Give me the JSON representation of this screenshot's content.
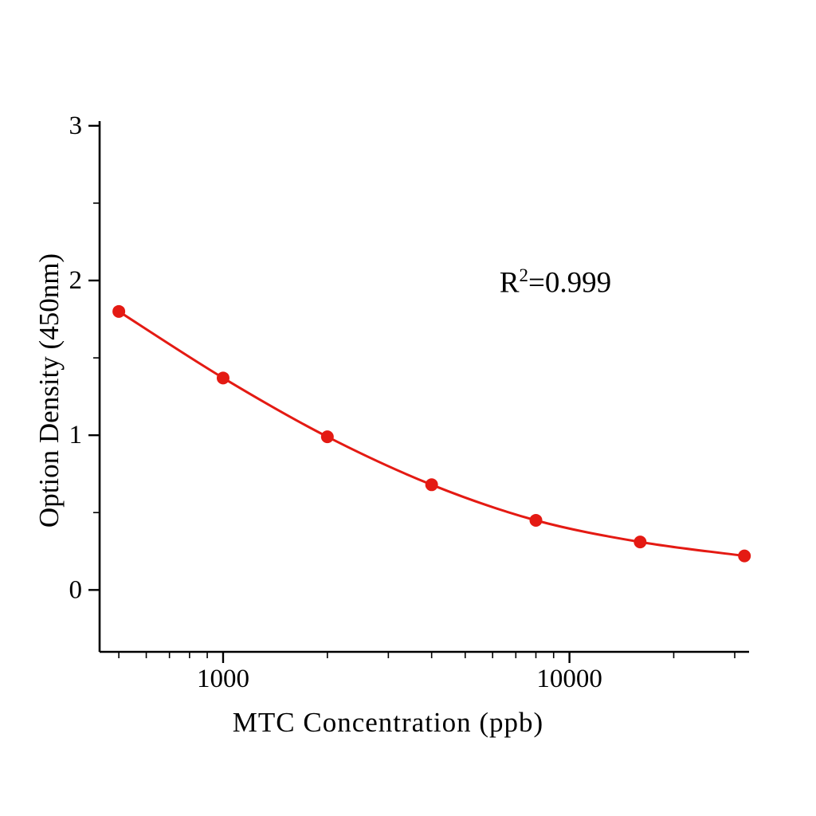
{
  "chart_data": {
    "type": "scatter",
    "title": "",
    "xlabel": "MTC  Concentration (ppb)",
    "ylabel": "Option Density (450nm)",
    "annotation": {
      "prefix": "R",
      "superscript": "2",
      "value": "=0.999"
    },
    "x_scale": "log",
    "x": [
      500,
      1000,
      2000,
      4000,
      8000,
      16000,
      32000
    ],
    "y": [
      1.8,
      1.37,
      0.99,
      0.68,
      0.45,
      0.31,
      0.22
    ],
    "x_range": [
      440,
      33000
    ],
    "y_range": [
      -0.4,
      3.03
    ],
    "x_ticks": [
      {
        "value": 1000,
        "label": "1000"
      },
      {
        "value": 10000,
        "label": "10000"
      }
    ],
    "x_minor_ticks": [
      500,
      600,
      700,
      800,
      900,
      2000,
      3000,
      4000,
      5000,
      6000,
      7000,
      8000,
      9000,
      20000,
      30000
    ],
    "y_ticks": [
      {
        "value": 0,
        "label": "0"
      },
      {
        "value": 1,
        "label": "1"
      },
      {
        "value": 2,
        "label": "2"
      },
      {
        "value": 3,
        "label": "3"
      }
    ],
    "y_minor_ticks": [
      0.5,
      1.5,
      2.5
    ],
    "legend": "none",
    "grid": "off"
  },
  "colors": {
    "line": "#e41a13",
    "marker": "#e41a13",
    "axis": "#000000",
    "background": "#ffffff"
  }
}
